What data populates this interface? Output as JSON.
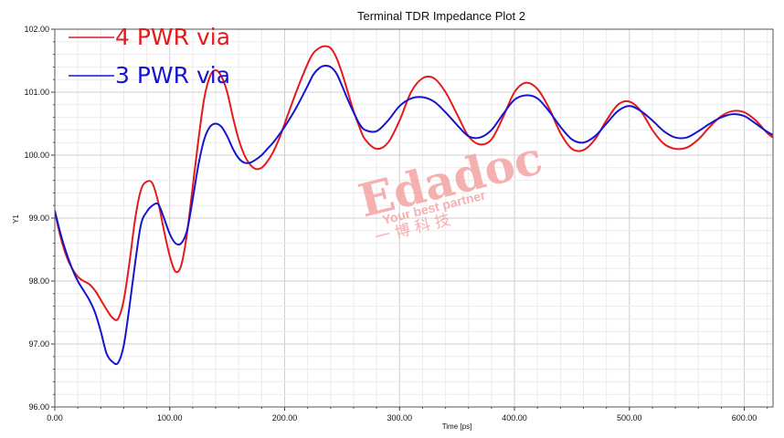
{
  "chart_data": {
    "type": "line",
    "title": "Terminal TDR Impedance Plot 2",
    "xlabel": "Time [ps]",
    "ylabel": "Y1",
    "xlim": [
      0,
      625
    ],
    "ylim": [
      96.0,
      102.0
    ],
    "x_ticks": [
      0,
      100,
      200,
      300,
      400,
      500,
      600
    ],
    "x_tick_labels": [
      "0.00",
      "100.00",
      "200.00",
      "300.00",
      "400.00",
      "500.00",
      "600.00"
    ],
    "y_ticks": [
      96,
      97,
      98,
      99,
      100,
      101,
      102
    ],
    "y_tick_labels": [
      "96.00",
      "97.00",
      "98.00",
      "99.00",
      "100.00",
      "101.00",
      "102.00"
    ],
    "grid": true,
    "legend_position": "top-left",
    "series": [
      {
        "name": "4 PWR via",
        "color": "#e41a1c",
        "x": [
          0,
          5,
          10,
          15,
          20,
          25,
          30,
          35,
          40,
          45,
          50,
          55,
          60,
          65,
          70,
          75,
          80,
          85,
          90,
          95,
          100,
          105,
          110,
          115,
          120,
          125,
          130,
          135,
          140,
          145,
          150,
          155,
          160,
          165,
          170,
          175,
          180,
          185,
          190,
          195,
          200,
          210,
          220,
          225,
          230,
          235,
          240,
          245,
          250,
          255,
          260,
          265,
          270,
          280,
          290,
          300,
          310,
          320,
          330,
          340,
          350,
          360,
          370,
          380,
          390,
          400,
          410,
          420,
          430,
          440,
          450,
          460,
          470,
          480,
          490,
          500,
          510,
          520,
          530,
          540,
          550,
          560,
          570,
          580,
          590,
          600,
          610,
          620,
          625
        ],
        "y": [
          99.1,
          98.7,
          98.4,
          98.2,
          98.07,
          98.0,
          97.95,
          97.85,
          97.7,
          97.55,
          97.42,
          97.4,
          97.7,
          98.3,
          99.0,
          99.45,
          99.58,
          99.55,
          99.25,
          98.8,
          98.4,
          98.15,
          98.25,
          98.75,
          99.5,
          100.25,
          100.9,
          101.25,
          101.35,
          101.25,
          101.0,
          100.6,
          100.25,
          100.0,
          99.85,
          99.78,
          99.8,
          99.9,
          100.05,
          100.25,
          100.5,
          101.0,
          101.45,
          101.62,
          101.7,
          101.73,
          101.7,
          101.55,
          101.3,
          101.0,
          100.7,
          100.45,
          100.25,
          100.1,
          100.2,
          100.55,
          101.0,
          101.22,
          101.22,
          101.0,
          100.65,
          100.3,
          100.17,
          100.25,
          100.6,
          101.0,
          101.15,
          101.05,
          100.75,
          100.35,
          100.1,
          100.08,
          100.25,
          100.55,
          100.8,
          100.85,
          100.7,
          100.4,
          100.18,
          100.1,
          100.12,
          100.25,
          100.45,
          100.62,
          100.7,
          100.68,
          100.55,
          100.35,
          100.28
        ]
      },
      {
        "name": "3 PWR via",
        "color": "#1515d0",
        "x": [
          0,
          5,
          10,
          15,
          20,
          25,
          30,
          35,
          40,
          45,
          50,
          55,
          60,
          65,
          70,
          75,
          80,
          85,
          90,
          95,
          100,
          105,
          110,
          115,
          120,
          125,
          130,
          135,
          140,
          145,
          150,
          155,
          160,
          165,
          170,
          175,
          180,
          185,
          190,
          195,
          200,
          210,
          220,
          225,
          230,
          235,
          240,
          245,
          250,
          255,
          260,
          265,
          270,
          280,
          290,
          300,
          310,
          320,
          330,
          340,
          350,
          360,
          370,
          380,
          390,
          400,
          410,
          420,
          430,
          440,
          450,
          460,
          470,
          480,
          490,
          500,
          510,
          520,
          530,
          540,
          550,
          560,
          570,
          580,
          590,
          600,
          610,
          620,
          625
        ],
        "y": [
          99.12,
          98.75,
          98.45,
          98.2,
          98.0,
          97.85,
          97.7,
          97.5,
          97.2,
          96.85,
          96.72,
          96.7,
          96.98,
          97.6,
          98.3,
          98.9,
          99.1,
          99.2,
          99.22,
          99.0,
          98.75,
          98.6,
          98.6,
          98.8,
          99.3,
          99.85,
          100.25,
          100.45,
          100.5,
          100.45,
          100.3,
          100.1,
          99.95,
          99.88,
          99.88,
          99.93,
          100.0,
          100.1,
          100.2,
          100.32,
          100.45,
          100.75,
          101.1,
          101.28,
          101.38,
          101.42,
          101.4,
          101.3,
          101.1,
          100.88,
          100.68,
          100.5,
          100.4,
          100.38,
          100.55,
          100.78,
          100.9,
          100.92,
          100.85,
          100.68,
          100.48,
          100.3,
          100.28,
          100.4,
          100.65,
          100.88,
          100.95,
          100.9,
          100.7,
          100.45,
          100.25,
          100.2,
          100.3,
          100.5,
          100.7,
          100.78,
          100.7,
          100.55,
          100.38,
          100.28,
          100.28,
          100.38,
          100.5,
          100.6,
          100.65,
          100.62,
          100.5,
          100.37,
          100.32
        ]
      }
    ]
  },
  "watermark": {
    "logo": "Edadoc",
    "tagline": "Your best partner",
    "chinese": "一 博 科 技"
  },
  "colors": {
    "grid": "#dedede",
    "axis": "#555555",
    "watermark": "#f4a3a3"
  }
}
